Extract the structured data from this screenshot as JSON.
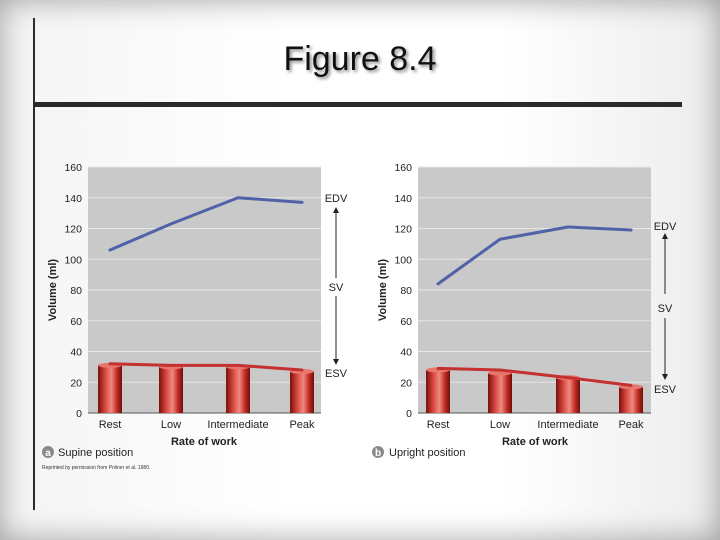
{
  "slide": {
    "title": "Figure 8.4",
    "credit": "Reprinted by permission from Poliner et al. 1980."
  },
  "chart_data": [
    {
      "type": "line",
      "panel_letter": "a",
      "caption": "Supine position",
      "xlabel": "Rate of work",
      "ylabel": "Volume (ml)",
      "categories": [
        "Rest",
        "Low",
        "Intermediate",
        "Peak"
      ],
      "ylim": [
        0,
        160
      ],
      "yticks": [
        0,
        20,
        40,
        60,
        80,
        100,
        120,
        140,
        160
      ],
      "grid": true,
      "series": [
        {
          "name": "EDV",
          "values": [
            106,
            123,
            140,
            137
          ],
          "color": "#4f62a8"
        },
        {
          "name": "ESV",
          "values": [
            32,
            31,
            31,
            28
          ],
          "color": "#c53030"
        }
      ],
      "bars": {
        "values": [
          31,
          30,
          30,
          27
        ],
        "color": "#b5211d"
      },
      "annotations": [
        "EDV",
        "SV",
        "ESV"
      ]
    },
    {
      "type": "line",
      "panel_letter": "b",
      "caption": "Upright position",
      "xlabel": "Rate of work",
      "ylabel": "Volume (ml)",
      "categories": [
        "Rest",
        "Low",
        "Intermediate",
        "Peak"
      ],
      "ylim": [
        0,
        160
      ],
      "yticks": [
        0,
        20,
        40,
        60,
        80,
        100,
        120,
        140,
        160
      ],
      "grid": true,
      "series": [
        {
          "name": "EDV",
          "values": [
            84,
            113,
            121,
            119
          ],
          "color": "#4f62a8"
        },
        {
          "name": "ESV",
          "values": [
            29,
            28,
            23,
            18
          ],
          "color": "#c53030"
        }
      ],
      "bars": {
        "values": [
          28,
          26,
          23,
          17
        ],
        "color": "#b5211d"
      },
      "annotations": [
        "EDV",
        "SV",
        "ESV"
      ]
    }
  ]
}
